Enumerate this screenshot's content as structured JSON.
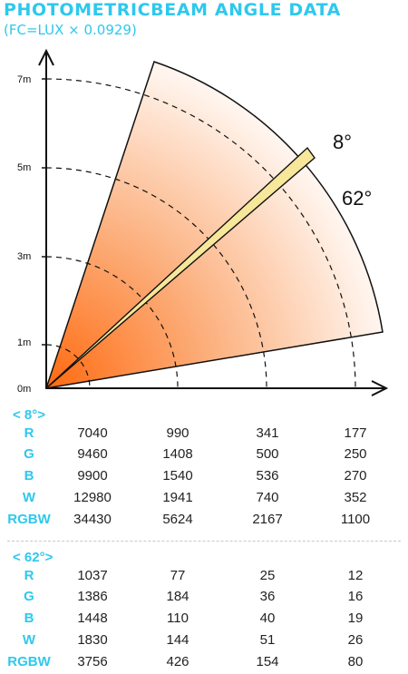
{
  "header": {
    "title": "PHOTOMETRICBEAM ANGLE DATA",
    "subtitle": "(FC=LUX × 0.0929)"
  },
  "diagram": {
    "y_ticks": [
      "0m",
      "1m",
      "3m",
      "5m",
      "7m"
    ],
    "beam_narrow_label": "8°",
    "beam_wide_label": "62°",
    "gradient_colors": [
      "#ff6a10",
      "#fcb07e",
      "#fff5ee"
    ],
    "narrow_beam_color": "#f6e79a"
  },
  "tables": [
    {
      "label": "< 8°>",
      "rows": [
        {
          "name": "R",
          "values": [
            "7040",
            "990",
            "341",
            "177"
          ]
        },
        {
          "name": "G",
          "values": [
            "9460",
            "1408",
            "500",
            "250"
          ]
        },
        {
          "name": "B",
          "values": [
            "9900",
            "1540",
            "536",
            "270"
          ]
        },
        {
          "name": "W",
          "values": [
            "12980",
            "1941",
            "740",
            "352"
          ]
        },
        {
          "name": "RGBW",
          "values": [
            "34430",
            "5624",
            "2167",
            "1100"
          ]
        }
      ]
    },
    {
      "label": "< 62°>",
      "rows": [
        {
          "name": "R",
          "values": [
            "1037",
            "77",
            "25",
            "12"
          ]
        },
        {
          "name": "G",
          "values": [
            "1386",
            "184",
            "36",
            "16"
          ]
        },
        {
          "name": "B",
          "values": [
            "1448",
            "110",
            "40",
            "19"
          ]
        },
        {
          "name": "W",
          "values": [
            "1830",
            "144",
            "51",
            "26"
          ]
        },
        {
          "name": "RGBW",
          "values": [
            "3756",
            "426",
            "154",
            "80"
          ]
        }
      ]
    }
  ]
}
